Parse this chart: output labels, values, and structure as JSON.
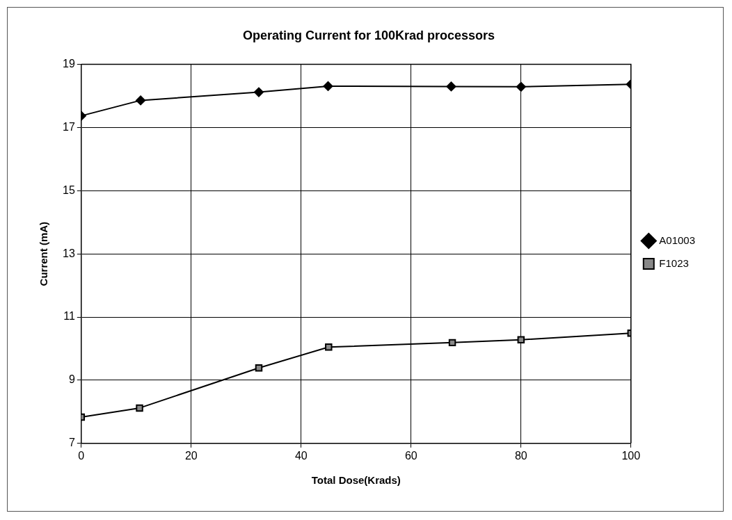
{
  "chart_data": {
    "type": "line",
    "title": "Operating Current for 100Krad processors",
    "xlabel": "Total Dose(Krads)",
    "ylabel": "Current (mA)",
    "xlim": [
      0,
      100
    ],
    "xticks": [
      0,
      20,
      40,
      60,
      80,
      100
    ],
    "ylim": [
      7,
      19
    ],
    "yticks": [
      7,
      9,
      11,
      13,
      15,
      17,
      19
    ],
    "grid": true,
    "legend": "right",
    "line_style": "solid",
    "series": [
      {
        "name": "A01003",
        "color": "#000000",
        "marker": "diamond",
        "x": [
          0,
          10.8,
          32.3,
          44.9,
          67.3,
          80,
          100
        ],
        "values": [
          17.37,
          17.86,
          18.12,
          18.31,
          18.3,
          18.29,
          18.37
        ]
      },
      {
        "name": "F1023",
        "color": "#000000",
        "marker": "square",
        "x": [
          0,
          10.6,
          32.3,
          45,
          67.5,
          80,
          100
        ],
        "values": [
          7.83,
          8.12,
          9.39,
          10.05,
          10.19,
          10.28,
          10.49
        ]
      }
    ]
  }
}
